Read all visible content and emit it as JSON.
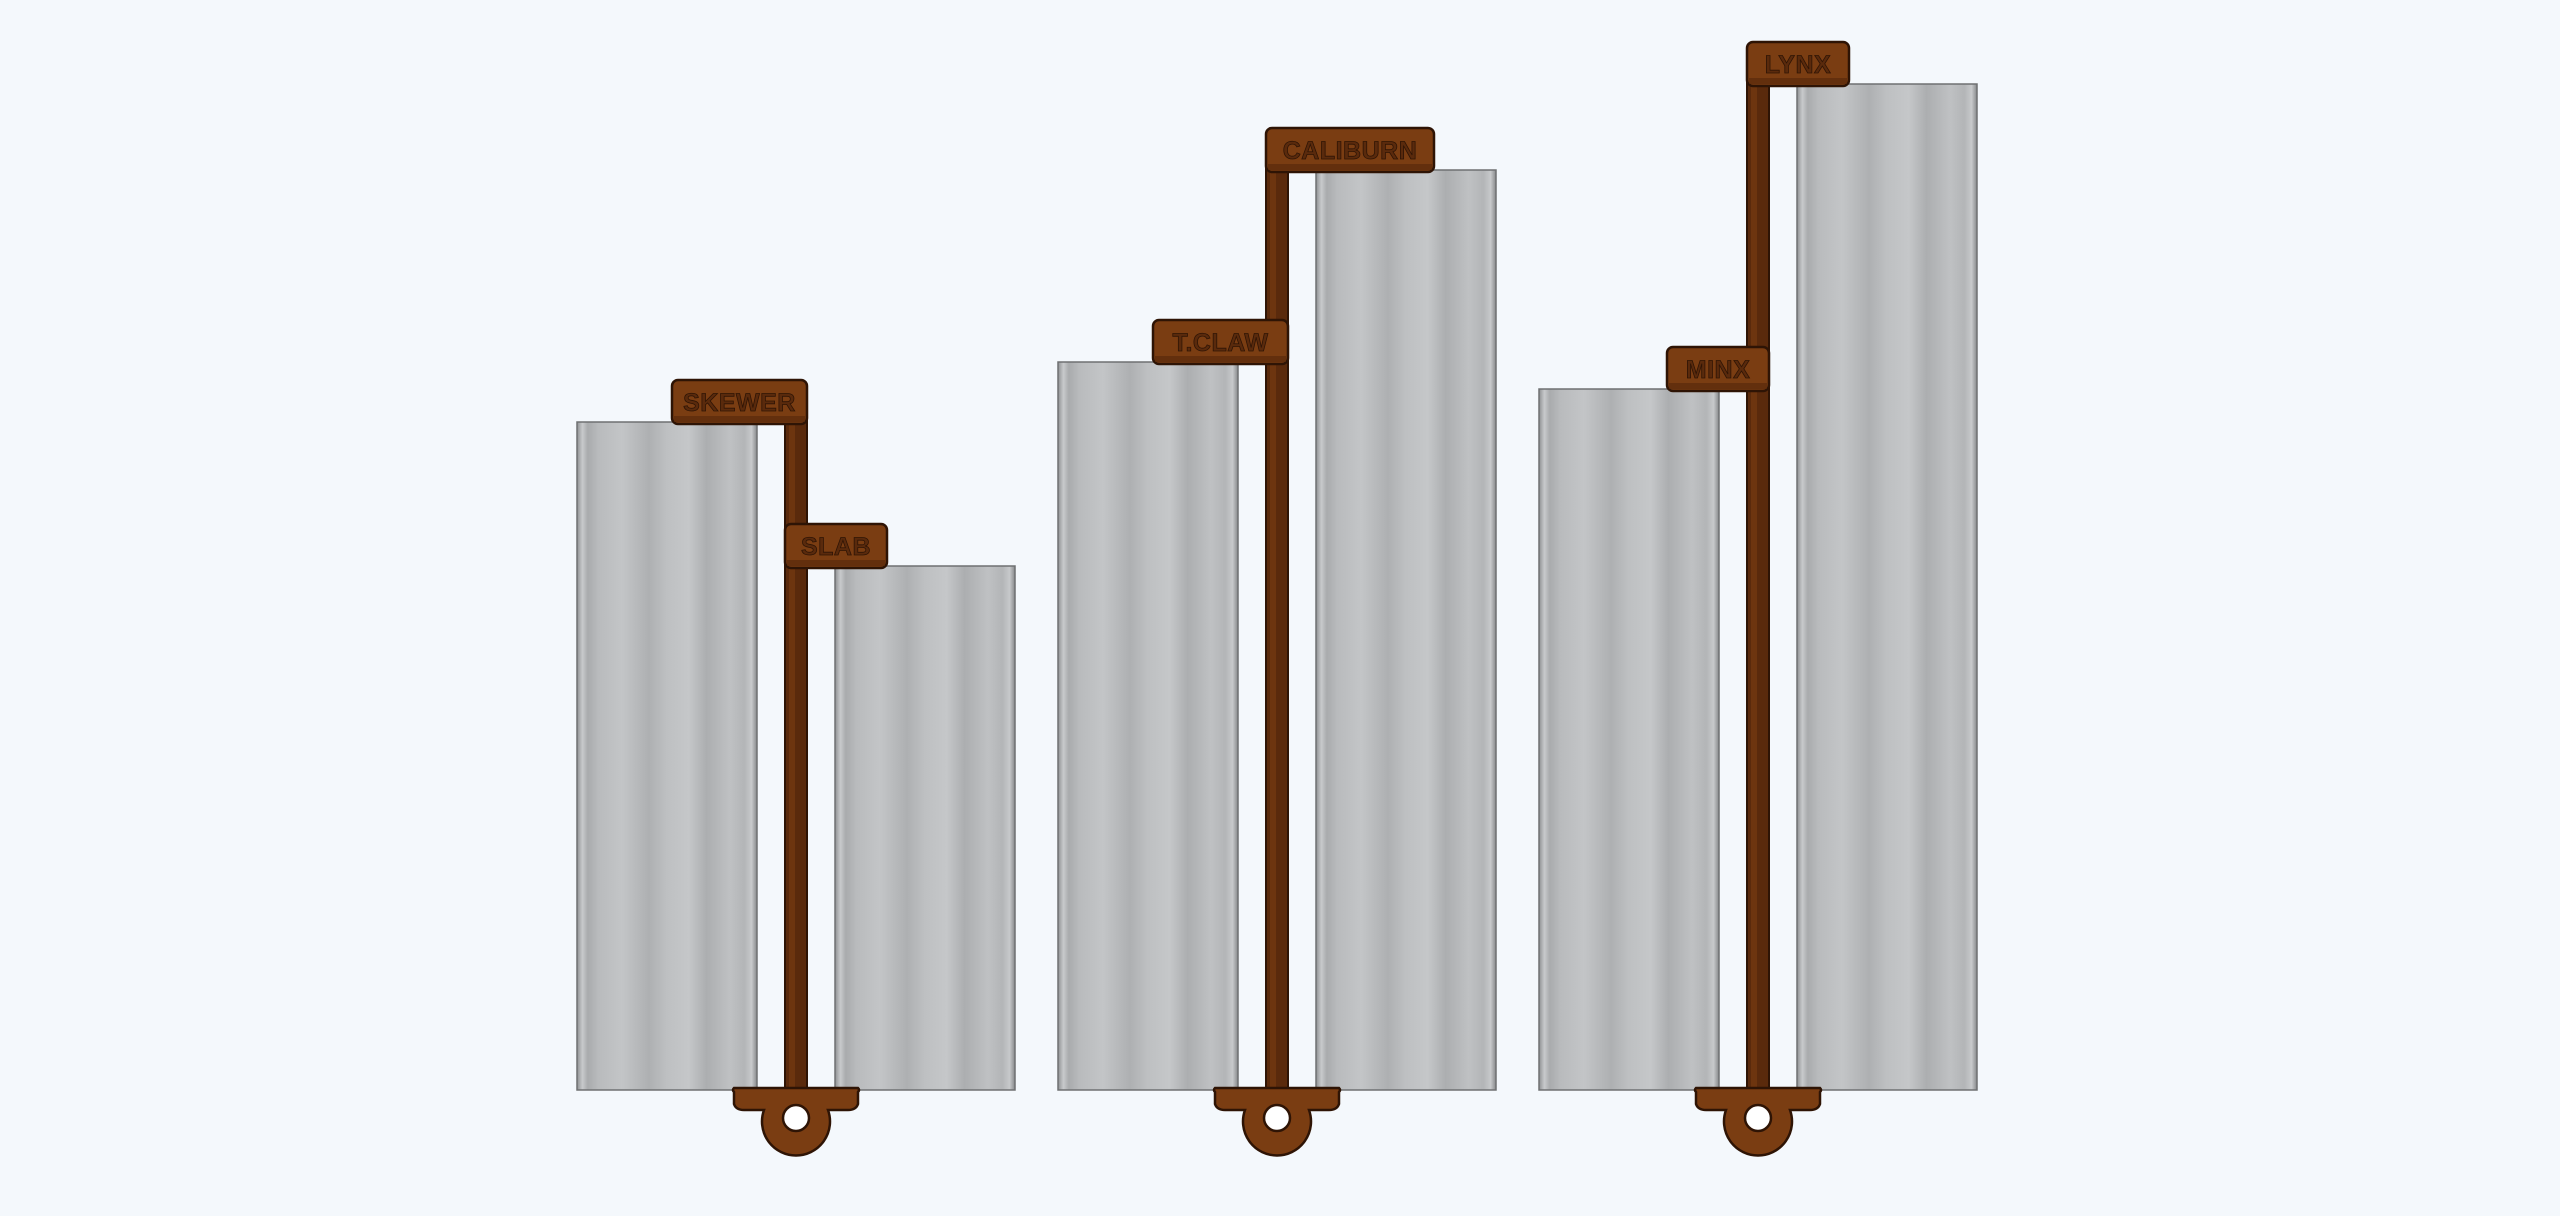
{
  "colors": {
    "background": "#f4f8fc",
    "holder": "#7a3d12",
    "holder_dark": "#5a2a0c",
    "holder_outline": "#2e1405",
    "panel_light": "#c4c6c8",
    "panel_mid": "#b2b4b6",
    "panel_edge": "#6e7072"
  },
  "groups": [
    {
      "name": "group-1",
      "panels": [
        {
          "label": "SKEWER",
          "relative_height": 0.624
        },
        {
          "label": "SLAB",
          "relative_height": 0.49
        }
      ]
    },
    {
      "name": "group-2",
      "panels": [
        {
          "label": "T.CLAW",
          "relative_height": 0.68
        },
        {
          "label": "CALIBURN",
          "relative_height": 0.86
        }
      ]
    },
    {
      "name": "group-3",
      "panels": [
        {
          "label": "MINX",
          "relative_height": 0.655
        },
        {
          "label": "LYNX",
          "relative_height": 0.94
        }
      ]
    }
  ]
}
